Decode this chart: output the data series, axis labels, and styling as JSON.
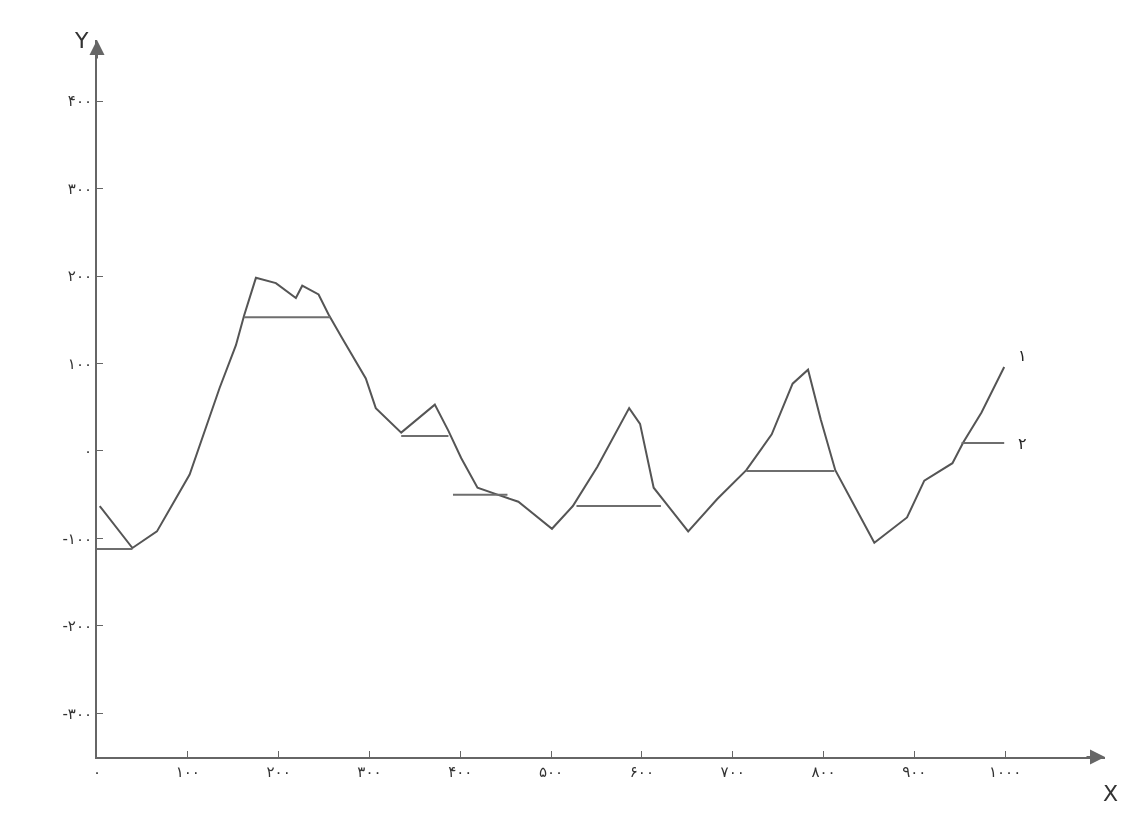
{
  "chart_data": {
    "type": "line",
    "xlabel": "X",
    "ylabel": "Y",
    "xlim": [
      0,
      1110
    ],
    "ylim": [
      -350,
      470
    ],
    "xticks": [
      {
        "value": 0,
        "label": "۰"
      },
      {
        "value": 100,
        "label": "۱۰۰"
      },
      {
        "value": 200,
        "label": "۲۰۰"
      },
      {
        "value": 300,
        "label": "۳۰۰"
      },
      {
        "value": 400,
        "label": "۴۰۰"
      },
      {
        "value": 500,
        "label": "۵۰۰"
      },
      {
        "value": 600,
        "label": "۶۰۰"
      },
      {
        "value": 700,
        "label": "۷۰۰"
      },
      {
        "value": 800,
        "label": "۸۰۰"
      },
      {
        "value": 900,
        "label": "۹۰۰"
      },
      {
        "value": 1000,
        "label": "۱۰۰۰"
      }
    ],
    "yticks": [
      {
        "value": -300,
        "label": "-۳۰۰"
      },
      {
        "value": -200,
        "label": "-۲۰۰"
      },
      {
        "value": -100,
        "label": "-۱۰۰"
      },
      {
        "value": 0,
        "label": "۰"
      },
      {
        "value": 100,
        "label": "۱۰۰"
      },
      {
        "value": 200,
        "label": "۲۰۰"
      },
      {
        "value": 300,
        "label": "۳۰۰"
      },
      {
        "value": 400,
        "label": "۴۰۰"
      }
    ],
    "grid": false,
    "legend": false,
    "marker": "none",
    "line_style": "solid",
    "series": [
      {
        "name": "۱",
        "color": "#555555",
        "x": [
          3,
          39,
          66,
          102,
          135,
          153,
          162,
          175,
          197,
          219,
          226,
          244,
          255,
          270,
          296,
          307,
          335,
          372,
          387,
          401,
          419,
          441,
          464,
          501,
          524,
          551,
          586,
          598,
          613,
          651,
          683,
          715,
          743,
          766,
          783,
          797,
          813,
          856,
          892,
          911,
          942,
          954,
          974,
          999
        ],
        "values": [
          -63,
          -111,
          -92,
          -27,
          72,
          121,
          155,
          198,
          192,
          175,
          189,
          179,
          156,
          129,
          83,
          49,
          21,
          53,
          23,
          -8,
          -42,
          -50,
          -58,
          -89,
          -63,
          -18,
          49,
          31,
          -42,
          -92,
          -55,
          -22,
          19,
          77,
          93,
          36,
          -22,
          -105,
          -76,
          -34,
          -14,
          10,
          44,
          96
        ]
      },
      {
        "name": "۲",
        "color": "#6e6e6e",
        "x": [
          0,
          39,
          null,
          162,
          257,
          null,
          335,
          387,
          null,
          392,
          452,
          null,
          528,
          621,
          null,
          715,
          812,
          null,
          952,
          999
        ],
        "values": [
          -112,
          -112,
          null,
          153,
          153,
          null,
          17,
          17,
          null,
          -50,
          -50,
          null,
          -63,
          -63,
          null,
          -23,
          -23,
          null,
          9,
          9
        ]
      }
    ]
  }
}
